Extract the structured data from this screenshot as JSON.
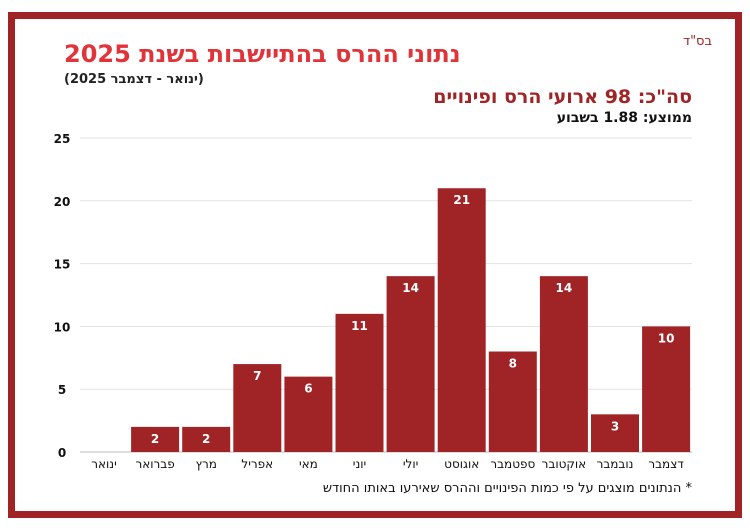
{
  "header": {
    "bsd": "בס\"ד",
    "title": "נתוני ההרס בהתיישבות בשנת 2025",
    "range": "(ינואר - דצמבר 2025)",
    "total": "סה\"כ: 98 ארועי הרס ופינויים",
    "average": "ממוצע: 1.88 בשבוע"
  },
  "footnote": "* הנתונים מוצגים על פי כמות הפינויים וההרס שאירעו באותו החודש",
  "colors": {
    "bar": "#a02426",
    "frame": "#a02426",
    "title": "#e0343a"
  },
  "chart_data": {
    "type": "bar",
    "categories": [
      "ינואר",
      "פברואר",
      "מרץ",
      "אפריל",
      "מאי",
      "יוני",
      "יולי",
      "אוגוסט",
      "ספטמבר",
      "אוקטובר",
      "נובמבר",
      "דצמבר"
    ],
    "values": [
      0,
      2,
      2,
      7,
      6,
      11,
      14,
      21,
      8,
      14,
      3,
      10
    ],
    "yticks": [
      0,
      5,
      10,
      15,
      20,
      25
    ],
    "ylim": [
      0,
      25
    ],
    "grid": true,
    "data_labels": true
  }
}
